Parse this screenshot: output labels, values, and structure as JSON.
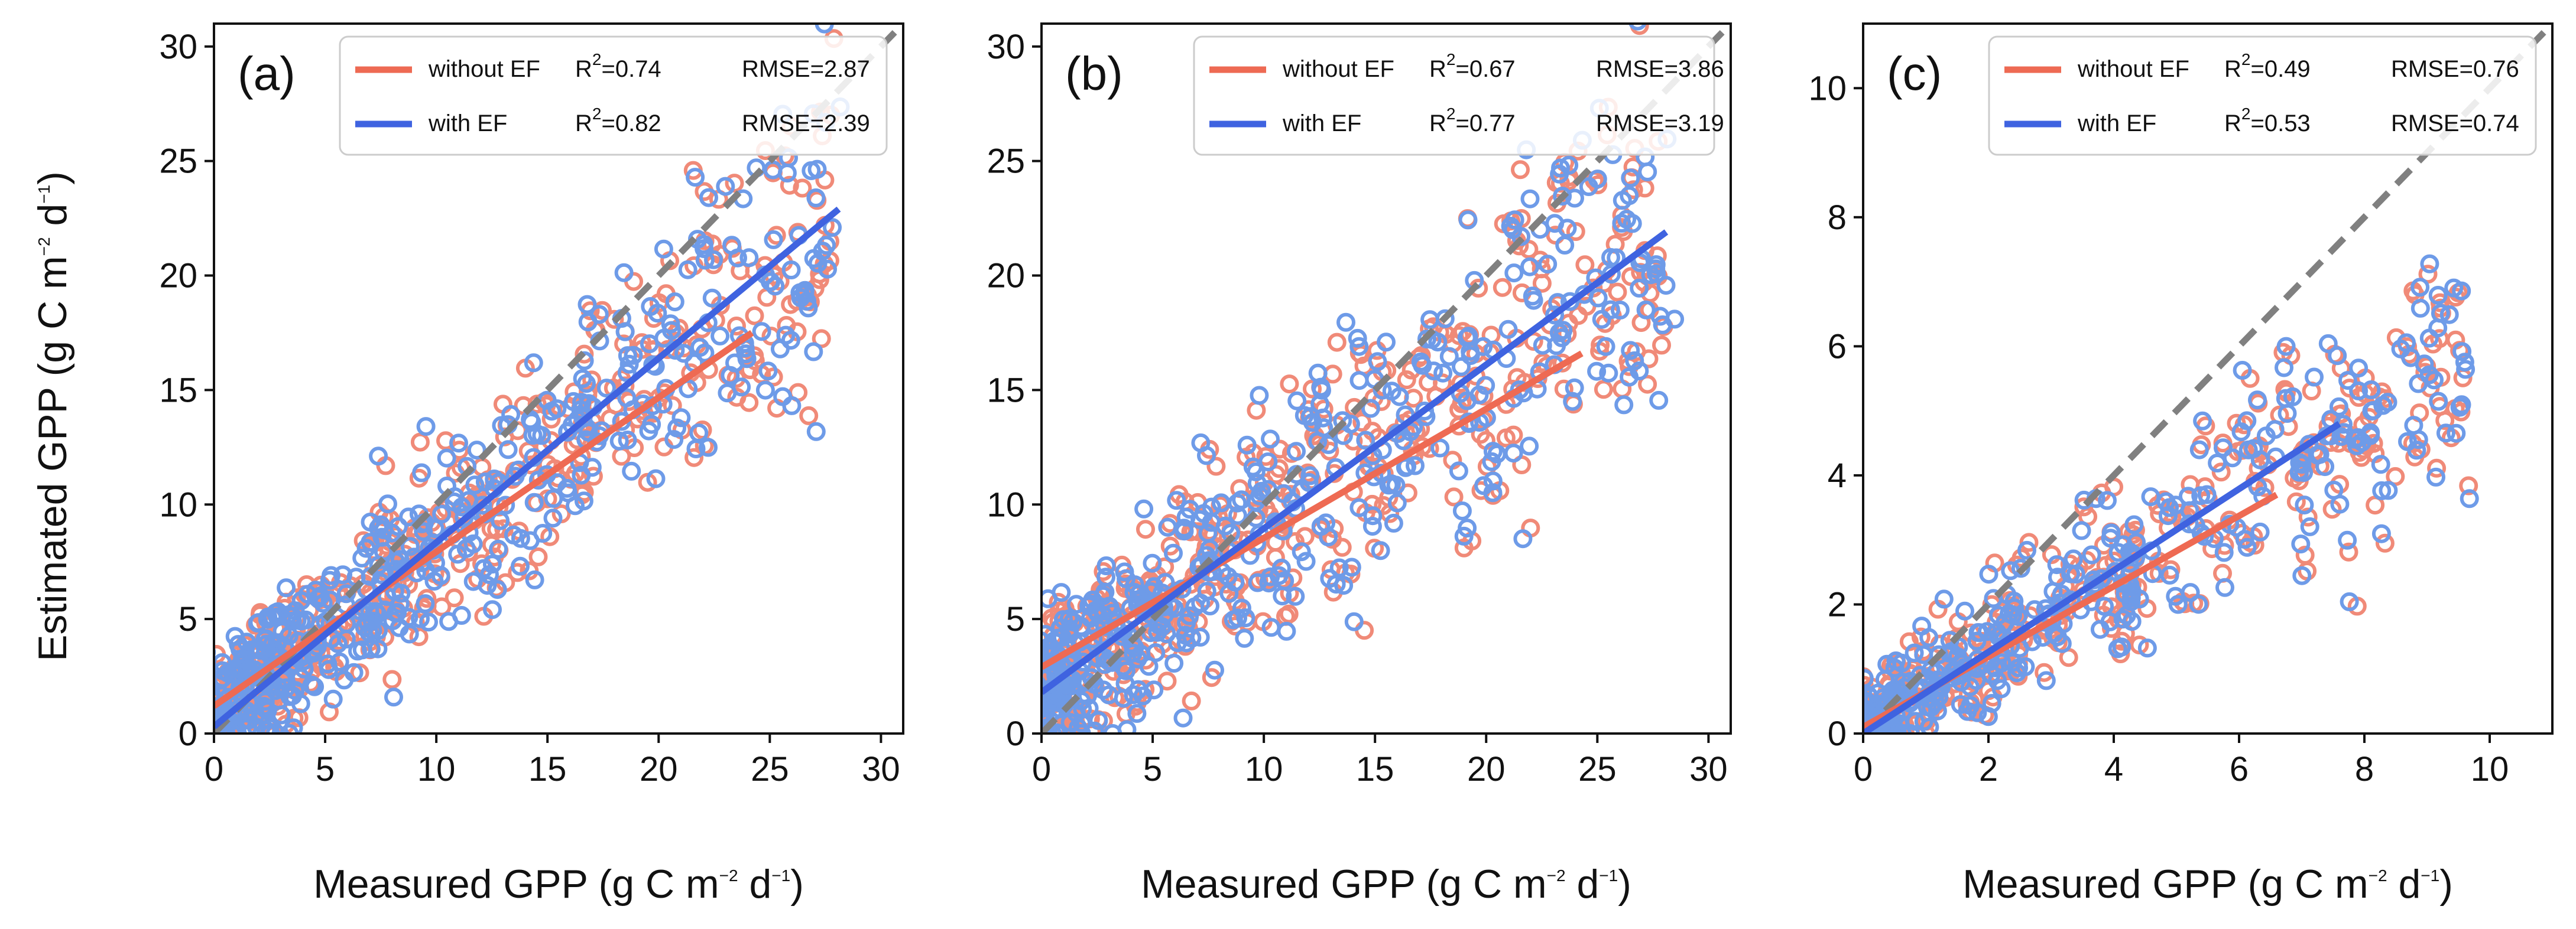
{
  "colors": {
    "without_ef": "#EE6A53",
    "with_ef": "#3F63E0",
    "points_without_ef": "#F08A78",
    "points_with_ef": "#6E9BE8",
    "one_to_one": "#808080"
  },
  "ylabel_parts": [
    "Estimated GPP (g C m",
    "−2",
    " d",
    "−1",
    ")"
  ],
  "xlabel_parts": [
    "Measured GPP (g C m",
    "−2",
    " d",
    "−1",
    ")"
  ],
  "chart_data": [
    {
      "type": "scatter",
      "panel_label": "(a)",
      "xlim": [
        0,
        31
      ],
      "ylim": [
        0,
        31
      ],
      "xticks": [
        0,
        5,
        10,
        15,
        20,
        25,
        30
      ],
      "yticks": [
        0,
        5,
        10,
        15,
        20,
        25,
        30
      ],
      "xlabel": "Measured GPP (g C m−2 d−1)",
      "ylabel": "Estimated GPP (g C m−2 d−1)",
      "one_to_one": true,
      "legend_position": "top-right",
      "series": [
        {
          "name": "without EF",
          "legend_name": "without EF",
          "r2_value": "=0.74",
          "rmse": "RMSE=2.87",
          "R2": 0.74,
          "RMSE": 2.87,
          "fit_line": {
            "x": [
              0,
              24.2
            ],
            "y": [
              1.2,
              17.5
            ]
          }
        },
        {
          "name": "with EF",
          "legend_name": "with EF",
          "r2_value": "=0.82",
          "rmse": "RMSE=2.39",
          "R2": 0.82,
          "RMSE": 2.39,
          "fit_line": {
            "x": [
              0,
              28.1
            ],
            "y": [
              0.3,
              22.9
            ]
          }
        }
      ],
      "cloud": {
        "xmax": 28,
        "yslope": 0.78,
        "yoffset": 0.7,
        "noise": 2.6,
        "count": 460
      }
    },
    {
      "type": "scatter",
      "panel_label": "(b)",
      "xlim": [
        0,
        31
      ],
      "ylim": [
        0,
        31
      ],
      "xticks": [
        0,
        5,
        10,
        15,
        20,
        25,
        30
      ],
      "yticks": [
        0,
        5,
        10,
        15,
        20,
        25,
        30
      ],
      "xlabel": "Measured GPP (g C m−2 d−1)",
      "ylabel": "",
      "one_to_one": true,
      "legend_position": "top-right",
      "series": [
        {
          "name": "without EF",
          "legend_name": "without EF",
          "r2_value": "=0.67",
          "rmse": "RMSE=3.86",
          "R2": 0.67,
          "RMSE": 3.86,
          "fit_line": {
            "x": [
              0,
              24.3
            ],
            "y": [
              2.9,
              16.6
            ]
          }
        },
        {
          "name": "with EF",
          "legend_name": "with EF",
          "r2_value": "=0.77",
          "rmse": "RMSE=3.19",
          "R2": 0.77,
          "RMSE": 3.19,
          "fit_line": {
            "x": [
              0,
              28.1
            ],
            "y": [
              1.8,
              21.9
            ]
          }
        }
      ],
      "cloud": {
        "xmax": 28,
        "yslope": 0.72,
        "yoffset": 1.6,
        "noise": 3.0,
        "count": 460
      }
    },
    {
      "type": "scatter",
      "panel_label": "(c)",
      "xlim": [
        0,
        11
      ],
      "ylim": [
        0,
        11
      ],
      "xticks": [
        0,
        2,
        4,
        6,
        8,
        10
      ],
      "yticks": [
        0,
        2,
        4,
        6,
        8,
        10
      ],
      "xlabel": "Measured GPP (g C m−2 d−1)",
      "ylabel": "",
      "one_to_one": true,
      "legend_position": "top-right",
      "series": [
        {
          "name": "without EF",
          "legend_name": "without EF",
          "r2_value": "=0.49",
          "rmse": "RMSE=0.76",
          "R2": 0.49,
          "RMSE": 0.76,
          "fit_line": {
            "x": [
              0,
              6.6
            ],
            "y": [
              0.1,
              3.7
            ]
          }
        },
        {
          "name": "with EF",
          "legend_name": "with EF",
          "r2_value": "=0.53",
          "rmse": "RMSE=0.74",
          "R2": 0.53,
          "RMSE": 0.74,
          "fit_line": {
            "x": [
              0,
              7.6
            ],
            "y": [
              0.0,
              4.8
            ]
          }
        }
      ],
      "cloud": {
        "xmax": 9.7,
        "yslope": 0.58,
        "yoffset": 0.15,
        "noise": 0.75,
        "count": 360
      }
    }
  ]
}
